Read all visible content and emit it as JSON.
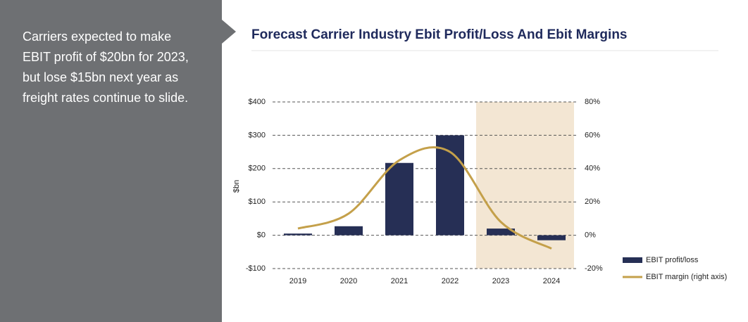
{
  "note": "Carriers expected to make EBIT profit of $20bn for 2023, but lose $15bn next year as freight rates continue to slide.",
  "chart_data": {
    "type": "bar",
    "title": "Forecast Carrier Industry Ebit Profit/Loss And Ebit Margins",
    "y_label": "$bn",
    "categories": [
      "2019",
      "2020",
      "2021",
      "2022",
      "2023",
      "2024"
    ],
    "series": [
      {
        "name": "EBIT profit/loss",
        "type": "bar",
        "color": "#262f55",
        "values": [
          5,
          27,
          217,
          300,
          20,
          -15
        ]
      },
      {
        "name": "EBIT margin (right axis)",
        "type": "line",
        "axis": "y2",
        "color": "#c4a04a",
        "values": [
          4,
          13,
          45,
          50,
          8,
          -8
        ]
      }
    ],
    "ylim": [
      -100,
      400
    ],
    "yticks": [
      {
        "value": -100,
        "label": "-$100"
      },
      {
        "value": 0,
        "label": "$0"
      },
      {
        "value": 100,
        "label": "$100"
      },
      {
        "value": 200,
        "label": "$200"
      },
      {
        "value": 300,
        "label": "$300"
      },
      {
        "value": 400,
        "label": "$400"
      }
    ],
    "y2lim": [
      -20,
      80
    ],
    "y2ticks": [
      {
        "value": -20,
        "label": "-20%"
      },
      {
        "value": 0,
        "label": "0%"
      },
      {
        "value": 20,
        "label": "20%"
      },
      {
        "value": 40,
        "label": "40%"
      },
      {
        "value": 60,
        "label": "60%"
      },
      {
        "value": 80,
        "label": "80%"
      }
    ],
    "grid": true
  }
}
